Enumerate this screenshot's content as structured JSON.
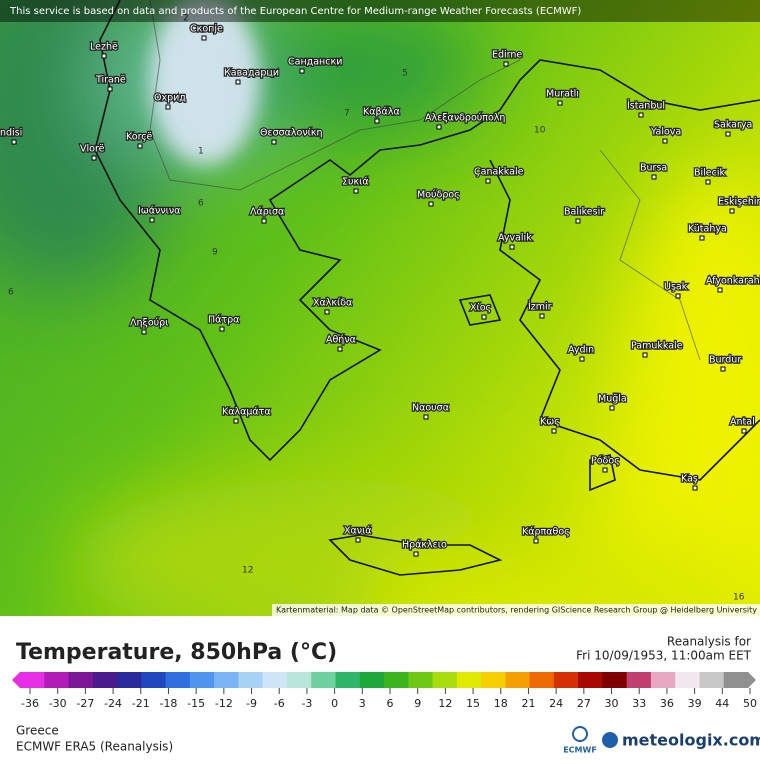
{
  "header": {
    "notice": "This service is based on data and products of the European Centre for Medium-range Weather Forecasts (ECMWF)"
  },
  "map": {
    "cities": [
      "ndisi",
      "Lezhë",
      "Tiranë",
      "Vlorë",
      "Korçë",
      "Охрид",
      "Скопје",
      "Кавадарци",
      "Сандански",
      "Edirne",
      "Muratlı",
      "İstanbul",
      "Yalova",
      "Sakarya",
      "Bursa",
      "Bilecik",
      "Eskişehir",
      "Kütahya",
      "Θεσσαλονίκη",
      "Καβάλα",
      "Αλεξανδρούπολη",
      "Συκιά",
      "Μούδρος",
      "Çanakkale",
      "Balıkesir",
      "Ιωάννινα",
      "Λάρισα",
      "Ayvalık",
      "Uşak",
      "Afyonkarahi",
      "Χαλκίδα",
      "Χίος",
      "İzmir",
      "Ληξούρι",
      "Πάτρα",
      "Αθήνα",
      "Pamukkale",
      "Burdur",
      "Aydın",
      "Ναουσα",
      "Muğla",
      "Καλαμάτα",
      "Κως",
      "Antal",
      "Ρόδος",
      "Kaş",
      "Χανιά",
      "Ηράκλειο",
      "Κάρπαθος"
    ],
    "contour_labels": [
      2,
      5,
      7,
      10,
      1,
      6,
      9,
      6,
      12,
      16
    ],
    "attribution": "Kartenmaterial: Map data © OpenStreetMap contributors, rendering GIScience Research Group @ Heidelberg University"
  },
  "legend": {
    "title": "Temperature, 850hPa (°C)",
    "ticks": [
      -36,
      -30,
      -27,
      -24,
      -21,
      -18,
      -15,
      -12,
      -9,
      -6,
      -3,
      0,
      3,
      6,
      9,
      12,
      15,
      18,
      21,
      24,
      27,
      30,
      33,
      36,
      39,
      44,
      50
    ],
    "colors": [
      "#e62ee6",
      "#b21bb8",
      "#7d1598",
      "#4b1a8c",
      "#2a2a9c",
      "#1f47c0",
      "#2f6fe0",
      "#4f94ef",
      "#79b5f4",
      "#a8d1f6",
      "#cfe4f7",
      "#b8e6d8",
      "#6fd0a0",
      "#2fb56a",
      "#1fa83a",
      "#3cb41e",
      "#6fc814",
      "#a8dc0c",
      "#dfe800",
      "#f6d000",
      "#f5a000",
      "#ee6a00",
      "#d43000",
      "#a80800",
      "#800000",
      "#c04070",
      "#e8a8c0",
      "#f4e8f0",
      "#c8c8c8",
      "#909090"
    ]
  },
  "info": {
    "reanalysis": "Reanalysis for",
    "datetime": "Fri 10/09/1953, 11:00am EET",
    "region": "Greece",
    "model": "ECMWF ERA5 (Reanalysis)",
    "ecmwf": "ECMWF",
    "brand": "meteologix.com"
  }
}
